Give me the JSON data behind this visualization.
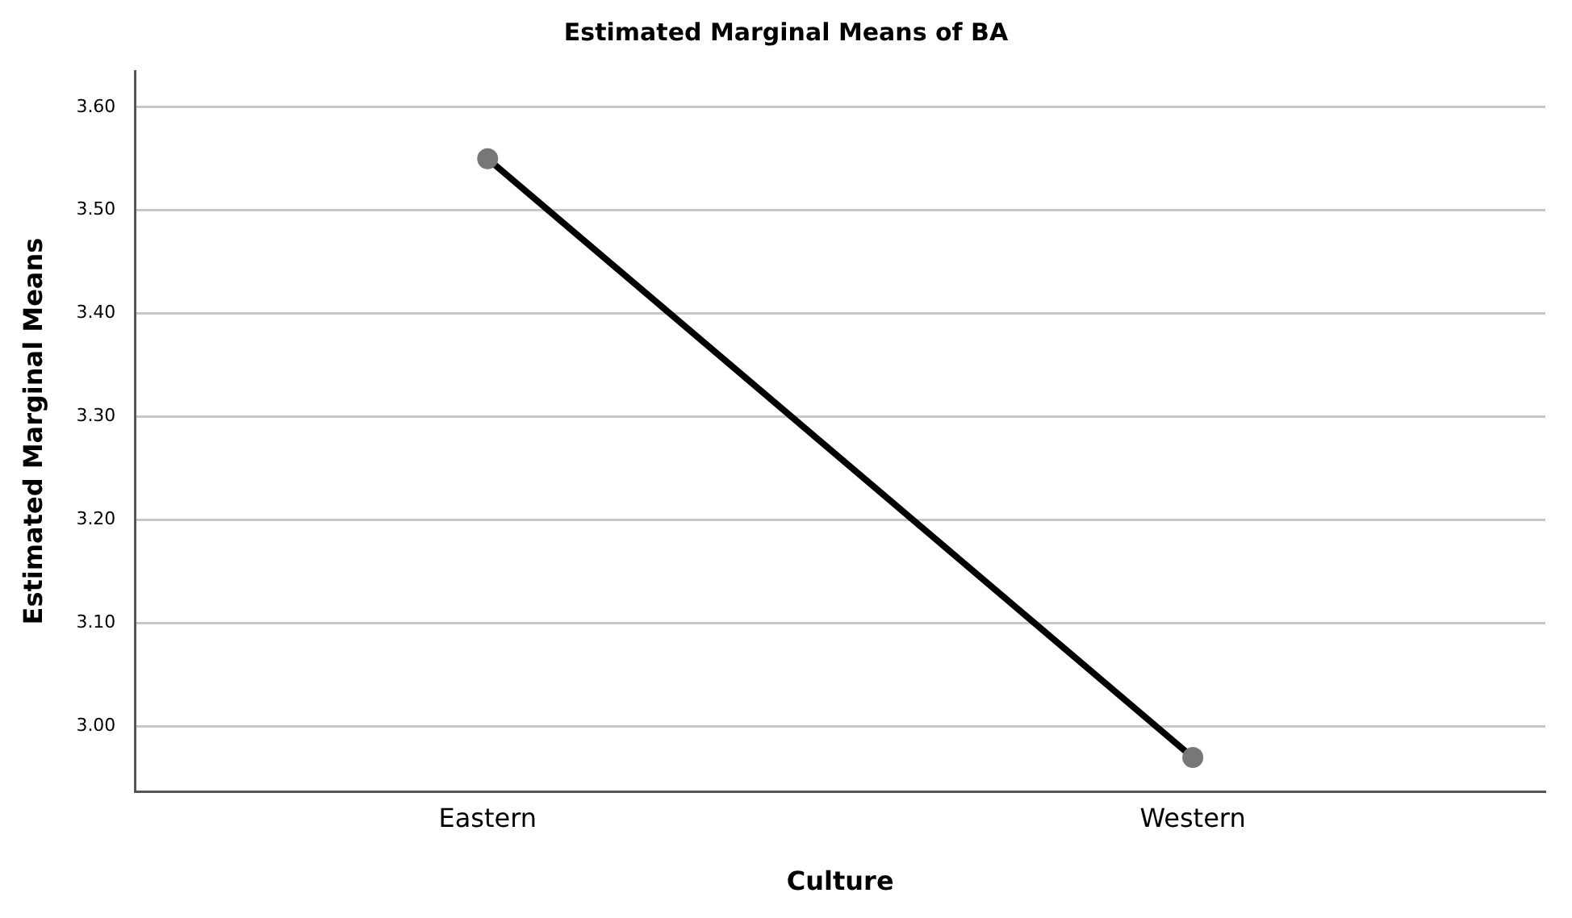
{
  "chart_data": {
    "type": "line",
    "title": "Estimated Marginal Means of BA",
    "xlabel": "Culture",
    "ylabel": "Estimated Marginal Means",
    "categories": [
      "Eastern",
      "Western"
    ],
    "series": [
      {
        "color": "#000000",
        "values": [
          3.55,
          2.97
        ]
      }
    ],
    "ylim": [
      2.937,
      3.635
    ],
    "yticks": [
      {
        "value": 3.0,
        "label": "3.00"
      },
      {
        "value": 3.1,
        "label": "3.10"
      },
      {
        "value": 3.2,
        "label": "3.20"
      },
      {
        "value": 3.3,
        "label": "3.30"
      },
      {
        "value": 3.4,
        "label": "3.40"
      },
      {
        "value": 3.5,
        "label": "3.50"
      },
      {
        "value": 3.6,
        "label": "3.60"
      }
    ],
    "grid": "y",
    "marker": "circle",
    "line_style": "solid",
    "legend": false
  }
}
